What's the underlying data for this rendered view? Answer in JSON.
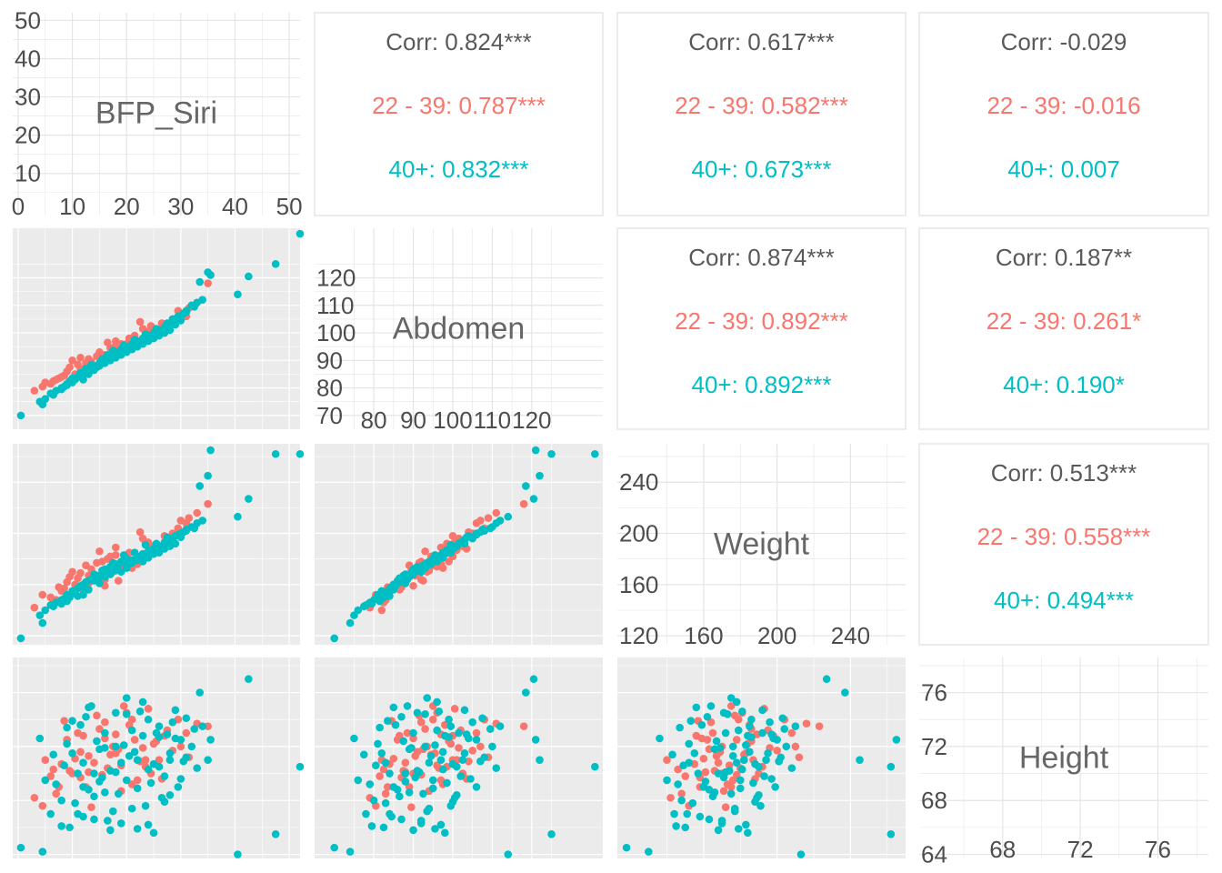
{
  "chart_data": {
    "type": "scatter",
    "variables": [
      "BFP_Siri",
      "Abdomen",
      "Weight",
      "Height"
    ],
    "groups": [
      {
        "name": "22 - 39",
        "color": "#F8766D"
      },
      {
        "name": "40+",
        "color": "#00BFC4"
      }
    ],
    "overall_label": "Corr",
    "axes": {
      "BFP_Siri": {
        "range": [
          -1,
          52
        ],
        "ticks": [
          "0",
          "10",
          "20",
          "30",
          "40",
          "50"
        ],
        "y_ticks": [
          "10",
          "20",
          "30",
          "40",
          "50"
        ]
      },
      "Abdomen": {
        "range": [
          65,
          138
        ],
        "ticks": [
          "80",
          "90",
          "100",
          "110",
          "120"
        ],
        "y_ticks": [
          "70",
          "80",
          "90",
          "100",
          "110",
          "120"
        ]
      },
      "Weight": {
        "range": [
          113,
          270
        ],
        "ticks": [
          "160",
          "200",
          "240"
        ],
        "y_ticks": [
          "120",
          "160",
          "200",
          "240"
        ]
      },
      "Height": {
        "range": [
          63.7,
          78.6
        ],
        "ticks": [
          "68",
          "72",
          "76"
        ],
        "y_ticks": [
          "64",
          "68",
          "72",
          "76"
        ]
      }
    },
    "correlations": [
      {
        "pair": [
          "Abdomen",
          "BFP_Siri"
        ],
        "corr": "0.824***",
        "groups": [
          "0.787***",
          "0.832***"
        ]
      },
      {
        "pair": [
          "Weight",
          "BFP_Siri"
        ],
        "corr": "0.617***",
        "groups": [
          "0.582***",
          "0.673***"
        ]
      },
      {
        "pair": [
          "Height",
          "BFP_Siri"
        ],
        "corr": "-0.029",
        "groups": [
          "-0.016",
          "0.007"
        ]
      },
      {
        "pair": [
          "Weight",
          "Abdomen"
        ],
        "corr": "0.874***",
        "groups": [
          "0.892***",
          "0.892***"
        ]
      },
      {
        "pair": [
          "Height",
          "Abdomen"
        ],
        "corr": "0.187**",
        "groups": [
          "0.261*",
          "0.190*"
        ]
      },
      {
        "pair": [
          "Height",
          "Weight"
        ],
        "corr": "0.513***",
        "groups": [
          "0.558***",
          "0.494***"
        ]
      }
    ],
    "points": [
      [
        35.0,
        118.0,
        223.0,
        73.5,
        1
      ],
      [
        5.0,
        82.0,
        140.0,
        71.0,
        1
      ],
      [
        7.5,
        83.5,
        158.0,
        69.0,
        1
      ],
      [
        3.0,
        79.0,
        142.0,
        68.2,
        1
      ],
      [
        26.0,
        101.0,
        187.0,
        71.0,
        1
      ],
      [
        19.5,
        95.0,
        175.0,
        75.0,
        1
      ],
      [
        31.0,
        106.0,
        208.0,
        73.0,
        1
      ],
      [
        11.5,
        87.0,
        158.0,
        69.7,
        1
      ],
      [
        17.5,
        93.5,
        170.0,
        72.0,
        1
      ],
      [
        20.0,
        96.0,
        181.0,
        74.5,
        1
      ],
      [
        10.0,
        90.0,
        170.0,
        70.0,
        1
      ],
      [
        21.5,
        99.0,
        178.0,
        72.5,
        1
      ],
      [
        23.5,
        98.5,
        192.0,
        70.5,
        1
      ],
      [
        4.5,
        80.5,
        152.0,
        67.6,
        1
      ],
      [
        16.0,
        92.0,
        164.0,
        73.8,
        1
      ],
      [
        14.0,
        88.0,
        168.0,
        70.8,
        1
      ],
      [
        28.5,
        105.0,
        200.0,
        71.7,
        1
      ],
      [
        9.0,
        86.0,
        162.0,
        72.5,
        1
      ],
      [
        24.5,
        102.5,
        190.0,
        70.0,
        1
      ],
      [
        12.5,
        89.0,
        175.0,
        69.0,
        1
      ],
      [
        18.0,
        95.5,
        183.0,
        71.5,
        1
      ],
      [
        8.0,
        84.0,
        155.0,
        70.7,
        1
      ],
      [
        27.0,
        100.0,
        198.0,
        72.8,
        1
      ],
      [
        15.0,
        93.0,
        186.0,
        73.3,
        1
      ],
      [
        22.0,
        97.0,
        176.0,
        69.5,
        1
      ],
      [
        6.0,
        81.5,
        150.0,
        69.8,
        1
      ],
      [
        13.0,
        90.5,
        167.0,
        71.3,
        1
      ],
      [
        29.5,
        108.0,
        204.0,
        74.0,
        1
      ],
      [
        19.0,
        94.0,
        171.0,
        68.7,
        1
      ],
      [
        10.5,
        85.0,
        160.0,
        71.1,
        1
      ],
      [
        25.0,
        99.5,
        184.0,
        72.2,
        1
      ],
      [
        16.5,
        96.5,
        180.0,
        70.4,
        1
      ],
      [
        33.0,
        111.0,
        216.0,
        73.7,
        1
      ],
      [
        21.0,
        97.5,
        173.0,
        69.2,
        1
      ],
      [
        11.0,
        88.5,
        165.0,
        73.0,
        1
      ],
      [
        14.5,
        91.5,
        177.0,
        74.3,
        1
      ],
      [
        23.0,
        101.5,
        196.0,
        71.9,
        1
      ],
      [
        7.0,
        83.0,
        148.0,
        68.5,
        1
      ],
      [
        18.5,
        92.5,
        163.0,
        71.8,
        1
      ],
      [
        26.5,
        103.5,
        188.0,
        69.6,
        1
      ],
      [
        12.0,
        86.5,
        156.0,
        72.8,
        1
      ],
      [
        20.5,
        98.0,
        185.0,
        73.6,
        1
      ],
      [
        30.0,
        107.0,
        210.0,
        72.0,
        1
      ],
      [
        9.5,
        87.5,
        166.0,
        70.2,
        1
      ],
      [
        16.0,
        90.0,
        159.0,
        72.6,
        1
      ],
      [
        24.0,
        100.5,
        193.0,
        74.8,
        1
      ],
      [
        13.5,
        89.5,
        172.0,
        67.5,
        1
      ],
      [
        22.5,
        104.0,
        201.0,
        70.9,
        1
      ],
      [
        17.0,
        94.5,
        182.0,
        71.4,
        1
      ],
      [
        27.5,
        102.0,
        195.0,
        73.2,
        1
      ],
      [
        8.5,
        84.5,
        157.0,
        73.9,
        1
      ],
      [
        19.0,
        96.0,
        174.0,
        70.6,
        1
      ],
      [
        25.5,
        99.0,
        186.0,
        72.4,
        1
      ],
      [
        11.5,
        91.0,
        169.0,
        71.6,
        1
      ],
      [
        15.5,
        92.0,
        178.0,
        69.9,
        1
      ],
      [
        31.5,
        109.0,
        212.0,
        71.2,
        1
      ],
      [
        21.0,
        95.0,
        179.0,
        74.0,
        1
      ],
      [
        13.0,
        88.0,
        161.0,
        70.1,
        1
      ],
      [
        18.0,
        97.0,
        189.0,
        72.9,
        1
      ],
      [
        23.5,
        100.0,
        182.0,
        71.0,
        1
      ],
      [
        6.5,
        82.5,
        146.0,
        70.3,
        1
      ],
      [
        0.5,
        70.0,
        118.0,
        64.5,
        2
      ],
      [
        52.0,
        136.0,
        262.0,
        70.5,
        2
      ],
      [
        47.5,
        125.0,
        262.0,
        65.5,
        2
      ],
      [
        35.0,
        122.0,
        245.0,
        71.0,
        2
      ],
      [
        35.5,
        121.0,
        265.0,
        72.5,
        2
      ],
      [
        33.5,
        118.5,
        237.0,
        76.0,
        2
      ],
      [
        4.5,
        74.0,
        130.0,
        64.2,
        2
      ],
      [
        42.5,
        120.5,
        227.0,
        77.0,
        2
      ],
      [
        40.5,
        114.0,
        213.0,
        64.0,
        2
      ],
      [
        10.0,
        82.0,
        155.0,
        71.5,
        2
      ],
      [
        14.0,
        88.0,
        168.0,
        70.0,
        2
      ],
      [
        18.0,
        93.0,
        176.0,
        72.0,
        2
      ],
      [
        22.0,
        97.0,
        182.0,
        71.0,
        2
      ],
      [
        26.0,
        101.0,
        190.0,
        70.5,
        2
      ],
      [
        30.0,
        106.0,
        200.0,
        72.5,
        2
      ],
      [
        12.0,
        85.0,
        160.0,
        69.0,
        2
      ],
      [
        16.0,
        90.0,
        172.0,
        73.0,
        2
      ],
      [
        20.0,
        95.0,
        180.0,
        69.5,
        2
      ],
      [
        24.0,
        99.0,
        186.0,
        74.0,
        2
      ],
      [
        28.0,
        103.0,
        195.0,
        71.5,
        2
      ],
      [
        8.0,
        80.0,
        148.0,
        68.0,
        2
      ],
      [
        6.0,
        78.0,
        144.0,
        67.0,
        2
      ],
      [
        32.0,
        110.0,
        205.0,
        72.0,
        2
      ],
      [
        34.0,
        112.0,
        210.0,
        73.5,
        2
      ],
      [
        11.0,
        84.0,
        157.0,
        70.0,
        2
      ],
      [
        15.0,
        89.0,
        166.0,
        71.8,
        2
      ],
      [
        19.0,
        94.0,
        178.0,
        70.8,
        2
      ],
      [
        23.0,
        98.0,
        184.0,
        72.8,
        2
      ],
      [
        27.0,
        102.0,
        193.0,
        69.8,
        2
      ],
      [
        31.0,
        108.0,
        202.0,
        71.2,
        2
      ],
      [
        9.0,
        81.0,
        152.0,
        72.2,
        2
      ],
      [
        13.0,
        86.0,
        163.0,
        68.8,
        2
      ],
      [
        17.0,
        91.0,
        174.0,
        70.2,
        2
      ],
      [
        21.0,
        96.0,
        179.0,
        73.2,
        2
      ],
      [
        25.0,
        100.0,
        188.0,
        70.7,
        2
      ],
      [
        29.0,
        104.0,
        198.0,
        72.6,
        2
      ],
      [
        7.0,
        79.0,
        146.0,
        69.2,
        2
      ],
      [
        12.5,
        87.0,
        162.0,
        74.2,
        2
      ],
      [
        16.5,
        92.0,
        170.0,
        66.5,
        2
      ],
      [
        20.5,
        94.5,
        176.0,
        71.3,
        2
      ],
      [
        24.5,
        98.5,
        187.0,
        69.3,
        2
      ],
      [
        28.5,
        105.0,
        196.0,
        73.8,
        2
      ],
      [
        10.5,
        83.0,
        154.0,
        67.8,
        2
      ],
      [
        14.5,
        87.5,
        167.0,
        72.4,
        2
      ],
      [
        18.5,
        92.5,
        175.0,
        68.5,
        2
      ],
      [
        22.5,
        96.5,
        181.0,
        74.6,
        2
      ],
      [
        26.5,
        100.5,
        189.0,
        68.2,
        2
      ],
      [
        30.5,
        107.0,
        201.0,
        70.9,
        2
      ],
      [
        5.0,
        76.0,
        140.0,
        69.5,
        2
      ],
      [
        9.5,
        82.5,
        150.0,
        66.0,
        2
      ],
      [
        13.5,
        88.5,
        164.0,
        75.0,
        2
      ],
      [
        17.5,
        93.5,
        177.0,
        67.2,
        2
      ],
      [
        21.5,
        97.5,
        185.0,
        71.6,
        2
      ],
      [
        25.5,
        101.5,
        192.0,
        73.0,
        2
      ],
      [
        29.5,
        106.0,
        199.0,
        69.0,
        2
      ],
      [
        33.0,
        111.0,
        208.0,
        70.4,
        2
      ],
      [
        11.5,
        85.5,
        159.0,
        73.6,
        2
      ],
      [
        15.5,
        90.5,
        171.0,
        69.7,
        2
      ],
      [
        19.5,
        95.5,
        183.0,
        72.1,
        2
      ],
      [
        23.5,
        99.5,
        191.0,
        67.6,
        2
      ],
      [
        27.5,
        103.5,
        197.0,
        72.9,
        2
      ],
      [
        8.5,
        80.5,
        149.0,
        70.6,
        2
      ],
      [
        12.0,
        84.5,
        158.0,
        66.8,
        2
      ],
      [
        16.0,
        89.5,
        169.0,
        71.9,
        2
      ],
      [
        20.0,
        93.0,
        173.0,
        74.4,
        2
      ],
      [
        24.0,
        97.0,
        183.0,
        66.2,
        2
      ],
      [
        28.0,
        102.5,
        194.0,
        71.0,
        2
      ],
      [
        32.5,
        109.5,
        204.0,
        73.3,
        2
      ],
      [
        6.5,
        77.5,
        143.0,
        71.4,
        2
      ],
      [
        10.0,
        83.5,
        153.0,
        73.9,
        2
      ],
      [
        14.0,
        86.5,
        165.0,
        68.3,
        2
      ],
      [
        18.0,
        91.5,
        172.0,
        70.1,
        2
      ],
      [
        22.0,
        95.0,
        180.0,
        68.9,
        2
      ],
      [
        26.0,
        99.0,
        186.0,
        72.7,
        2
      ],
      [
        30.0,
        104.5,
        197.0,
        69.6,
        2
      ],
      [
        4.0,
        75.0,
        136.0,
        72.6,
        2
      ],
      [
        17.0,
        90.0,
        168.0,
        65.8,
        2
      ],
      [
        21.0,
        94.0,
        177.0,
        67.4,
        2
      ],
      [
        25.0,
        98.0,
        184.0,
        65.6,
        2
      ],
      [
        13.0,
        85.0,
        156.0,
        74.9,
        2
      ],
      [
        29.0,
        103.0,
        192.0,
        74.7,
        2
      ],
      [
        19.0,
        92.0,
        170.0,
        66.3,
        2
      ],
      [
        23.0,
        96.0,
        178.0,
        75.3,
        2
      ],
      [
        11.0,
        84.0,
        151.0,
        67.0,
        2
      ],
      [
        27.0,
        100.0,
        188.0,
        67.9,
        2
      ],
      [
        15.0,
        88.0,
        161.0,
        69.4,
        2
      ],
      [
        31.0,
        107.5,
        203.0,
        74.1,
        2
      ],
      [
        20.0,
        93.5,
        175.0,
        75.6,
        2
      ],
      [
        9.0,
        81.5,
        147.0,
        73.4,
        2
      ],
      [
        24.0,
        97.5,
        181.0,
        70.3,
        2
      ],
      [
        16.0,
        89.0,
        166.0,
        68.6,
        2
      ],
      [
        22.0,
        95.5,
        179.0,
        65.9,
        2
      ],
      [
        12.0,
        83.0,
        152.0,
        70.8,
        2
      ],
      [
        26.0,
        99.5,
        185.0,
        73.5,
        2
      ],
      [
        18.0,
        91.0,
        171.0,
        74.5,
        2
      ],
      [
        14.0,
        87.0,
        163.0,
        66.6,
        2
      ],
      [
        28.0,
        101.0,
        190.0,
        68.4,
        2
      ],
      [
        8.0,
        79.5,
        145.0,
        66.1,
        2
      ]
    ]
  }
}
